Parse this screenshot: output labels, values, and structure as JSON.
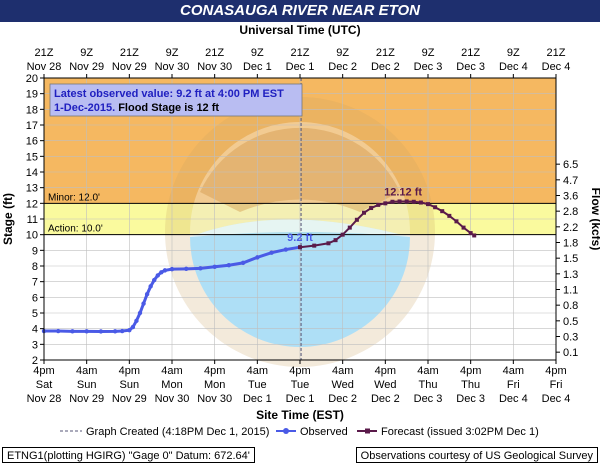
{
  "title": "CONASAUGA RIVER NEAR ETON",
  "chart_data": {
    "type": "line",
    "top_axis_title": "Universal Time (UTC)",
    "bottom_axis_title": "Site Time (EST)",
    "ylabel": "Stage (ft)",
    "y2label": "Flow (kcfs)",
    "ylim": [
      2,
      20
    ],
    "y_ticks": [
      2,
      3,
      4,
      5,
      6,
      7,
      8,
      9,
      10,
      11,
      12,
      13,
      14,
      15,
      16,
      17,
      18,
      19,
      20
    ],
    "xlim": [
      "2015-11-28T16:00",
      "2015-12-04T16:00"
    ],
    "x_ticks_bottom": [
      {
        "t": "2015-11-28T16:00",
        "l1": "4pm",
        "l2": "Sat",
        "l3": "Nov 28"
      },
      {
        "t": "2015-11-29T04:00",
        "l1": "4am",
        "l2": "Sun",
        "l3": "Nov 29"
      },
      {
        "t": "2015-11-29T16:00",
        "l1": "4pm",
        "l2": "Sun",
        "l3": "Nov 29"
      },
      {
        "t": "2015-11-30T04:00",
        "l1": "4am",
        "l2": "Mon",
        "l3": "Nov 30"
      },
      {
        "t": "2015-11-30T16:00",
        "l1": "4pm",
        "l2": "Mon",
        "l3": "Nov 30"
      },
      {
        "t": "2015-12-01T04:00",
        "l1": "4am",
        "l2": "Tue",
        "l3": "Dec 1"
      },
      {
        "t": "2015-12-01T16:00",
        "l1": "4pm",
        "l2": "Tue",
        "l3": "Dec 1"
      },
      {
        "t": "2015-12-02T04:00",
        "l1": "4am",
        "l2": "Wed",
        "l3": "Dec 2"
      },
      {
        "t": "2015-12-02T16:00",
        "l1": "4pm",
        "l2": "Wed",
        "l3": "Dec 2"
      },
      {
        "t": "2015-12-03T04:00",
        "l1": "4am",
        "l2": "Thu",
        "l3": "Dec 3"
      },
      {
        "t": "2015-12-03T16:00",
        "l1": "4pm",
        "l2": "Thu",
        "l3": "Dec 3"
      },
      {
        "t": "2015-12-04T04:00",
        "l1": "4am",
        "l2": "Fri",
        "l3": "Dec 4"
      },
      {
        "t": "2015-12-04T16:00",
        "l1": "4pm",
        "l2": "Fri",
        "l3": "Dec 4"
      }
    ],
    "x_ticks_top": [
      {
        "t": "2015-11-28T16:00",
        "l1": "21Z",
        "l2": "Nov 28"
      },
      {
        "t": "2015-11-29T04:00",
        "l1": "9Z",
        "l2": "Nov 29"
      },
      {
        "t": "2015-11-29T16:00",
        "l1": "21Z",
        "l2": "Nov 29"
      },
      {
        "t": "2015-11-30T04:00",
        "l1": "9Z",
        "l2": "Nov 30"
      },
      {
        "t": "2015-11-30T16:00",
        "l1": "21Z",
        "l2": "Nov 30"
      },
      {
        "t": "2015-12-01T04:00",
        "l1": "9Z",
        "l2": "Dec 1"
      },
      {
        "t": "2015-12-01T16:00",
        "l1": "21Z",
        "l2": "Dec 1"
      },
      {
        "t": "2015-12-02T04:00",
        "l1": "9Z",
        "l2": "Dec 2"
      },
      {
        "t": "2015-12-02T16:00",
        "l1": "21Z",
        "l2": "Dec 2"
      },
      {
        "t": "2015-12-03T04:00",
        "l1": "9Z",
        "l2": "Dec 3"
      },
      {
        "t": "2015-12-03T16:00",
        "l1": "21Z",
        "l2": "Dec 3"
      },
      {
        "t": "2015-12-04T04:00",
        "l1": "9Z",
        "l2": "Dec 4"
      },
      {
        "t": "2015-12-04T16:00",
        "l1": "21Z",
        "l2": "Dec 4"
      }
    ],
    "flow_ticks": [
      {
        "stage": 2.5,
        "label": "0.1"
      },
      {
        "stage": 3.5,
        "label": "0.3"
      },
      {
        "stage": 4.5,
        "label": "0.5"
      },
      {
        "stage": 5.5,
        "label": "0.8"
      },
      {
        "stage": 6.5,
        "label": "1.1"
      },
      {
        "stage": 7.5,
        "label": "1.3"
      },
      {
        "stage": 8.5,
        "label": "1.5"
      },
      {
        "stage": 9.5,
        "label": "1.8"
      },
      {
        "stage": 10.5,
        "label": "2.2"
      },
      {
        "stage": 11.5,
        "label": "2.8"
      },
      {
        "stage": 12.5,
        "label": "3.6"
      },
      {
        "stage": 13.5,
        "label": "4.7"
      },
      {
        "stage": 14.5,
        "label": "6.5"
      }
    ],
    "bands": [
      {
        "name": "major-band",
        "from": 12,
        "to": 20,
        "color": "#f5b861"
      },
      {
        "name": "minor-band",
        "from": 10,
        "to": 12,
        "color": "#fafa9e"
      }
    ],
    "thresholds": [
      {
        "name": "minor",
        "label": "Minor: 12.0'",
        "value": 12
      },
      {
        "name": "action",
        "label": "Action: 10.0'",
        "value": 10
      }
    ],
    "graph_created": "2015-12-01T16:18",
    "series": [
      {
        "name": "Observed",
        "color": "#4a5ae6",
        "points": [
          [
            "2015-11-28T16:00",
            3.85
          ],
          [
            "2015-11-28T20:00",
            3.85
          ],
          [
            "2015-11-29T00:00",
            3.83
          ],
          [
            "2015-11-29T04:00",
            3.83
          ],
          [
            "2015-11-29T08:00",
            3.82
          ],
          [
            "2015-11-29T12:00",
            3.83
          ],
          [
            "2015-11-29T14:00",
            3.85
          ],
          [
            "2015-11-29T16:00",
            3.9
          ],
          [
            "2015-11-29T17:00",
            4.1
          ],
          [
            "2015-11-29T18:00",
            4.5
          ],
          [
            "2015-11-29T19:00",
            5.0
          ],
          [
            "2015-11-29T20:00",
            5.6
          ],
          [
            "2015-11-29T21:00",
            6.2
          ],
          [
            "2015-11-29T22:00",
            6.7
          ],
          [
            "2015-11-29T23:00",
            7.1
          ],
          [
            "2015-11-30T00:00",
            7.4
          ],
          [
            "2015-11-30T01:00",
            7.6
          ],
          [
            "2015-11-30T02:00",
            7.72
          ],
          [
            "2015-11-30T04:00",
            7.8
          ],
          [
            "2015-11-30T08:00",
            7.82
          ],
          [
            "2015-11-30T12:00",
            7.85
          ],
          [
            "2015-11-30T16:00",
            7.95
          ],
          [
            "2015-11-30T20:00",
            8.05
          ],
          [
            "2015-12-01T00:00",
            8.2
          ],
          [
            "2015-12-01T04:00",
            8.55
          ],
          [
            "2015-12-01T08:00",
            8.85
          ],
          [
            "2015-12-01T12:00",
            9.05
          ],
          [
            "2015-12-01T16:00",
            9.2
          ]
        ]
      },
      {
        "name": "Forecast",
        "color": "#5a1a4a",
        "points": [
          [
            "2015-12-01T16:00",
            9.2
          ],
          [
            "2015-12-01T20:00",
            9.3
          ],
          [
            "2015-12-02T00:00",
            9.45
          ],
          [
            "2015-12-02T02:00",
            9.65
          ],
          [
            "2015-12-02T04:00",
            10.0
          ],
          [
            "2015-12-02T06:00",
            10.45
          ],
          [
            "2015-12-02T08:00",
            10.95
          ],
          [
            "2015-12-02T10:00",
            11.4
          ],
          [
            "2015-12-02T12:00",
            11.7
          ],
          [
            "2015-12-02T14:00",
            11.9
          ],
          [
            "2015-12-02T16:00",
            12.0
          ],
          [
            "2015-12-02T18:00",
            12.1
          ],
          [
            "2015-12-02T20:00",
            12.12
          ],
          [
            "2015-12-02T22:00",
            12.12
          ],
          [
            "2015-12-03T00:00",
            12.1
          ],
          [
            "2015-12-03T02:00",
            12.05
          ],
          [
            "2015-12-03T04:00",
            11.95
          ],
          [
            "2015-12-03T06:00",
            11.75
          ],
          [
            "2015-12-03T08:00",
            11.5
          ],
          [
            "2015-12-03T10:00",
            11.2
          ],
          [
            "2015-12-03T12:00",
            10.85
          ],
          [
            "2015-12-03T14:00",
            10.45
          ],
          [
            "2015-12-03T16:00",
            10.1
          ],
          [
            "2015-12-03T17:00",
            9.95
          ]
        ]
      }
    ],
    "annotations": [
      {
        "name": "latest-label",
        "text": "9.2 ft",
        "t": "2015-12-01T16:00",
        "value": 9.2,
        "color": "#4a5ae6"
      },
      {
        "name": "crest-label",
        "text": "12.12 ft",
        "t": "2015-12-02T21:00",
        "value": 12.12,
        "color": "#5a1a4a"
      }
    ],
    "info_box": {
      "line1": "Latest observed value: 9.2 ft at 4:00 PM EST",
      "line2a": "1-Dec-2015.",
      "line2b": " Flood Stage is 12 ft"
    },
    "legend": {
      "placement": "bottom",
      "created": "Graph Created (4:18PM Dec 1, 2015)",
      "observed": "Observed",
      "forecast": "Forecast (issued 3:02PM Dec 1)"
    },
    "grid": true
  },
  "footer": {
    "left": "ETNG1(plotting HGIRG) \"Gage 0\" Datum: 672.64'",
    "right": "Observations courtesy of US Geological Survey"
  }
}
